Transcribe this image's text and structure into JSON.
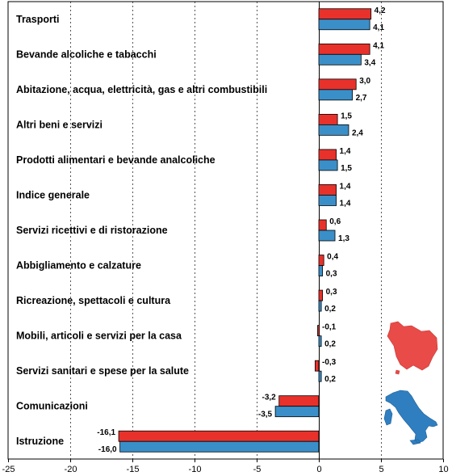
{
  "chart_data": {
    "type": "bar",
    "orientation": "horizontal",
    "categories": [
      "Trasporti",
      "Bevande alcoliche e tabacchi",
      "Abitazione, acqua, elettricità, gas e altri combustibili",
      "Altri beni e servizi",
      "Prodotti alimentari e bevande analcoliche",
      "Indice generale",
      "Servizi ricettivi e di ristorazione",
      "Abbigliamento e calzature",
      "Ricreazione, spettacoli e cultura",
      "Mobili, articoli e servizi per la casa",
      "Servizi sanitari e spese per la salute",
      "Comunicazioni",
      "Istruzione"
    ],
    "series": [
      {
        "values": [
          4.2,
          4.1,
          3.0,
          1.5,
          1.4,
          1.4,
          0.6,
          0.4,
          0.3,
          -0.1,
          -0.3,
          -3.2,
          -16.1
        ],
        "labels": [
          "4,2",
          "4,1",
          "3,0",
          "1,5",
          "1,4",
          "1,4",
          "0,6",
          "0,4",
          "0,3",
          "-0,1",
          "-0,3",
          "-3,2",
          "-16,1"
        ],
        "color": "#e8312b",
        "map": "tuscany"
      },
      {
        "values": [
          4.1,
          3.4,
          2.7,
          2.4,
          1.5,
          1.4,
          1.3,
          0.3,
          0.2,
          0.2,
          0.2,
          -3.5,
          -16.0
        ],
        "labels": [
          "4,1",
          "3,4",
          "2,7",
          "2,4",
          "1,5",
          "1,4",
          "1,3",
          "0,3",
          "0,2",
          "0,2",
          "0,2",
          "-3,5",
          "-16,0"
        ],
        "color": "#3a8fc8",
        "map": "italy"
      }
    ],
    "xlim": [
      -25,
      10
    ],
    "xticks": [
      -25,
      -20,
      -15,
      -10,
      -5,
      0,
      5,
      10
    ],
    "xtick_labels": [
      "-25",
      "-20",
      "-15",
      "-10",
      "-5",
      "0",
      "5",
      "10"
    ],
    "grid": "vertical dotted",
    "legend": "map-icons bottom-right"
  }
}
